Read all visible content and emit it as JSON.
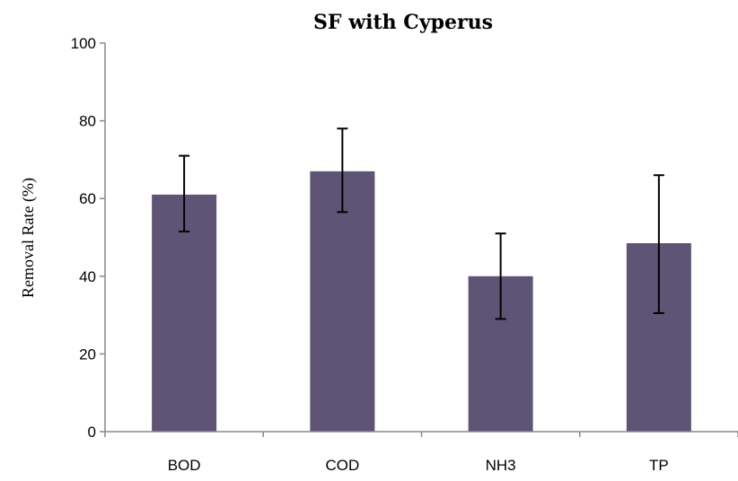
{
  "chart_data": {
    "type": "bar",
    "title": "SF with Cyperus",
    "xlabel": "",
    "ylabel": "Removal  Rate (%)",
    "categories": [
      "BOD",
      "COD",
      "NH3",
      "TP"
    ],
    "values": [
      61,
      67,
      40,
      48.5
    ],
    "error_low": [
      51.5,
      56.5,
      29,
      30.5
    ],
    "error_high": [
      71,
      78,
      51,
      66
    ],
    "ylim": [
      0,
      100
    ],
    "yticks": [
      0,
      20,
      40,
      60,
      80,
      100
    ],
    "bar_color": "#5e5475",
    "grid": false,
    "legend": "none"
  }
}
